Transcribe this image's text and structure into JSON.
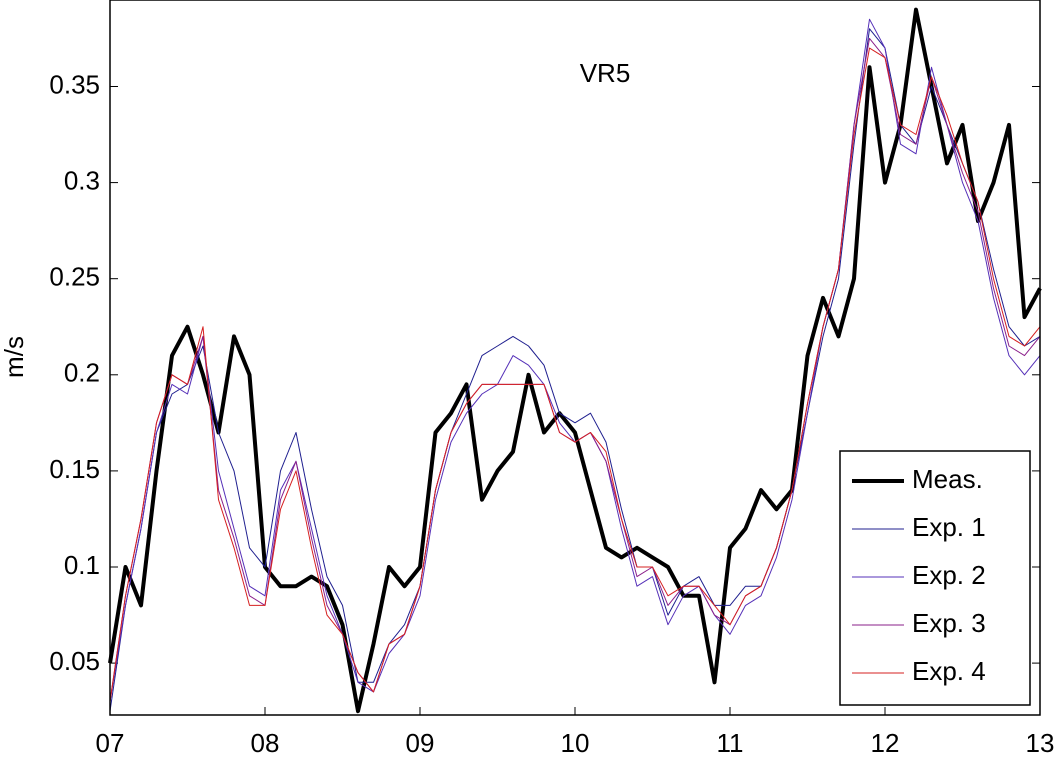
{
  "chart_data": {
    "type": "line",
    "title": "VR5",
    "y_label": "m/s",
    "x": [
      7.0,
      7.1,
      7.2,
      7.3,
      7.4,
      7.5,
      7.6,
      7.7,
      7.8,
      7.9,
      8.0,
      8.1,
      8.2,
      8.3,
      8.4,
      8.5,
      8.6,
      8.7,
      8.8,
      8.9,
      9.0,
      9.1,
      9.2,
      9.3,
      9.4,
      9.5,
      9.6,
      9.7,
      9.8,
      9.9,
      10.0,
      10.1,
      10.2,
      10.3,
      10.4,
      10.5,
      10.6,
      10.7,
      10.8,
      10.9,
      11.0,
      11.1,
      11.2,
      11.3,
      11.4,
      11.5,
      11.6,
      11.7,
      11.8,
      11.9,
      12.0,
      12.1,
      12.2,
      12.3,
      12.4,
      12.5,
      12.6,
      12.7,
      12.8,
      12.9,
      13.0
    ],
    "series": [
      {
        "name": "Meas.",
        "color": "#000000",
        "width": 4,
        "values": [
          0.05,
          0.1,
          0.08,
          0.15,
          0.21,
          0.225,
          0.2,
          0.17,
          0.22,
          0.2,
          0.1,
          0.09,
          0.09,
          0.095,
          0.09,
          0.07,
          0.025,
          0.06,
          0.1,
          0.09,
          0.1,
          0.17,
          0.18,
          0.195,
          0.135,
          0.15,
          0.16,
          0.2,
          0.17,
          0.18,
          0.17,
          0.14,
          0.11,
          0.105,
          0.11,
          0.105,
          0.1,
          0.085,
          0.085,
          0.04,
          0.11,
          0.12,
          0.14,
          0.13,
          0.14,
          0.21,
          0.24,
          0.22,
          0.25,
          0.36,
          0.3,
          0.33,
          0.39,
          0.35,
          0.31,
          0.33,
          0.28,
          0.3,
          0.33,
          0.23,
          0.245
        ]
      },
      {
        "name": "Exp. 1",
        "color": "#1f1f8f",
        "width": 1,
        "values": [
          0.025,
          0.08,
          0.12,
          0.17,
          0.19,
          0.195,
          0.215,
          0.17,
          0.15,
          0.11,
          0.1,
          0.15,
          0.17,
          0.13,
          0.095,
          0.08,
          0.04,
          0.04,
          0.06,
          0.07,
          0.09,
          0.14,
          0.17,
          0.19,
          0.21,
          0.215,
          0.22,
          0.215,
          0.205,
          0.18,
          0.175,
          0.18,
          0.165,
          0.13,
          0.1,
          0.1,
          0.075,
          0.09,
          0.095,
          0.08,
          0.08,
          0.09,
          0.09,
          0.11,
          0.14,
          0.18,
          0.22,
          0.25,
          0.32,
          0.38,
          0.37,
          0.33,
          0.32,
          0.35,
          0.33,
          0.31,
          0.29,
          0.255,
          0.225,
          0.215,
          0.22
        ]
      },
      {
        "name": "Exp. 2",
        "color": "#5530b8",
        "width": 1,
        "values": [
          0.03,
          0.08,
          0.12,
          0.17,
          0.195,
          0.19,
          0.22,
          0.15,
          0.12,
          0.09,
          0.085,
          0.14,
          0.155,
          0.12,
          0.085,
          0.065,
          0.04,
          0.035,
          0.055,
          0.065,
          0.085,
          0.135,
          0.165,
          0.18,
          0.19,
          0.195,
          0.21,
          0.205,
          0.195,
          0.175,
          0.165,
          0.17,
          0.155,
          0.12,
          0.09,
          0.095,
          0.07,
          0.085,
          0.09,
          0.075,
          0.065,
          0.08,
          0.085,
          0.105,
          0.135,
          0.18,
          0.225,
          0.255,
          0.33,
          0.385,
          0.37,
          0.32,
          0.315,
          0.36,
          0.33,
          0.3,
          0.28,
          0.24,
          0.21,
          0.2,
          0.21
        ]
      },
      {
        "name": "Exp. 3",
        "color": "#8a1f8a",
        "width": 1,
        "values": [
          0.03,
          0.085,
          0.125,
          0.175,
          0.2,
          0.195,
          0.22,
          0.14,
          0.115,
          0.085,
          0.08,
          0.135,
          0.155,
          0.115,
          0.08,
          0.065,
          0.045,
          0.035,
          0.06,
          0.065,
          0.09,
          0.14,
          0.17,
          0.185,
          0.195,
          0.195,
          0.195,
          0.195,
          0.195,
          0.17,
          0.165,
          0.17,
          0.155,
          0.125,
          0.095,
          0.1,
          0.08,
          0.09,
          0.09,
          0.075,
          0.07,
          0.085,
          0.09,
          0.11,
          0.14,
          0.185,
          0.225,
          0.255,
          0.33,
          0.375,
          0.365,
          0.325,
          0.32,
          0.355,
          0.33,
          0.305,
          0.285,
          0.245,
          0.215,
          0.21,
          0.22
        ]
      },
      {
        "name": "Exp. 4",
        "color": "#d62020",
        "width": 1,
        "values": [
          0.03,
          0.085,
          0.125,
          0.175,
          0.2,
          0.195,
          0.225,
          0.135,
          0.11,
          0.08,
          0.08,
          0.13,
          0.15,
          0.11,
          0.075,
          0.065,
          0.045,
          0.035,
          0.06,
          0.065,
          0.09,
          0.14,
          0.17,
          0.185,
          0.195,
          0.195,
          0.195,
          0.195,
          0.195,
          0.17,
          0.165,
          0.17,
          0.16,
          0.125,
          0.1,
          0.1,
          0.085,
          0.09,
          0.09,
          0.08,
          0.07,
          0.085,
          0.09,
          0.11,
          0.14,
          0.185,
          0.225,
          0.255,
          0.325,
          0.37,
          0.365,
          0.33,
          0.325,
          0.355,
          0.335,
          0.31,
          0.29,
          0.25,
          0.22,
          0.215,
          0.225
        ]
      }
    ],
    "xlim": [
      7,
      13
    ],
    "xticks": [
      {
        "value": 7,
        "label": "07"
      },
      {
        "value": 8,
        "label": "08"
      },
      {
        "value": 9,
        "label": "09"
      },
      {
        "value": 10,
        "label": "10"
      },
      {
        "value": 11,
        "label": "11"
      },
      {
        "value": 12,
        "label": "12"
      },
      {
        "value": 13,
        "label": "13"
      }
    ],
    "ylim": [
      0.023,
      0.395
    ],
    "yticks": [
      0.05,
      0.1,
      0.15,
      0.2,
      0.25,
      0.3,
      0.35
    ],
    "grid": false,
    "legend": "lower right"
  }
}
